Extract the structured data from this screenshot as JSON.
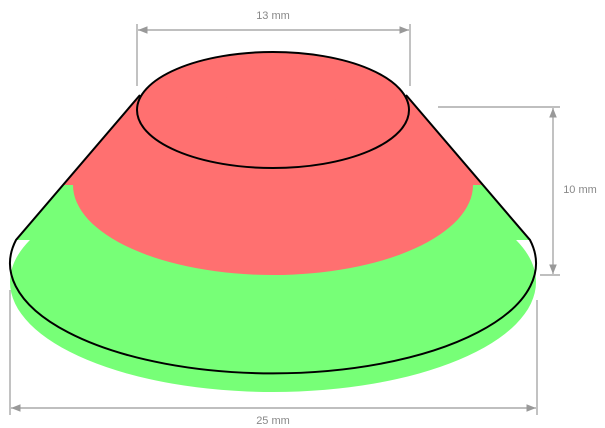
{
  "dimensions": {
    "top_diameter": "13 mm",
    "height": "10 mm",
    "bottom_diameter": "25 mm"
  }
}
